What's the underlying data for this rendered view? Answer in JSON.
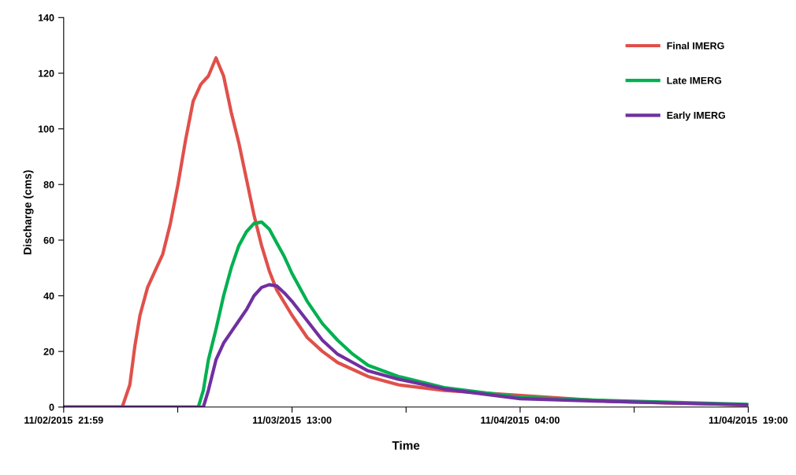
{
  "chart_data": {
    "type": "line",
    "xlabel": "Time",
    "ylabel": "Discharge (cms)",
    "xlim": [
      "2015-11-02T21:59",
      "2015-11-04T19:00"
    ],
    "xticks": [
      {
        "value": "2015-11-02T21:59",
        "label": "11/02/2015  21:59"
      },
      {
        "value": "2015-11-03T05:29",
        "label": null
      },
      {
        "value": "2015-11-03T13:00",
        "label": "11/03/2015  13:00"
      },
      {
        "value": "2015-11-03T20:30",
        "label": null
      },
      {
        "value": "2015-11-04T04:00",
        "label": "11/04/2015  04:00"
      },
      {
        "value": "2015-11-04T11:30",
        "label": null
      },
      {
        "value": "2015-11-04T19:00",
        "label": "11/04/2015  19:00"
      }
    ],
    "ylim": [
      0,
      140
    ],
    "yticks": [
      0,
      20,
      40,
      60,
      80,
      100,
      120,
      140
    ],
    "grid": false,
    "legend": "top right",
    "marker": "none",
    "line_style": "solid",
    "series": [
      {
        "name": "Final IMERG",
        "color": "#e0504a",
        "x": [
          "2015-11-02T21:59",
          "2015-11-03T01:50",
          "2015-11-03T02:20",
          "2015-11-03T02:40",
          "2015-11-03T03:00",
          "2015-11-03T03:30",
          "2015-11-03T04:00",
          "2015-11-03T04:30",
          "2015-11-03T05:00",
          "2015-11-03T05:30",
          "2015-11-03T06:00",
          "2015-11-03T06:30",
          "2015-11-03T07:00",
          "2015-11-03T07:30",
          "2015-11-03T08:00",
          "2015-11-03T08:30",
          "2015-11-03T09:00",
          "2015-11-03T09:30",
          "2015-11-03T10:00",
          "2015-11-03T10:30",
          "2015-11-03T11:00",
          "2015-11-03T11:30",
          "2015-11-03T12:00",
          "2015-11-03T13:00",
          "2015-11-03T14:00",
          "2015-11-03T15:00",
          "2015-11-03T16:00",
          "2015-11-03T18:00",
          "2015-11-03T20:00",
          "2015-11-03T23:00",
          "2015-11-04T10:00",
          "2015-11-04T19:00"
        ],
        "values": [
          0,
          0,
          8,
          22,
          33,
          43,
          49,
          55,
          66,
          80,
          96,
          110,
          116,
          119,
          125.5,
          119,
          106,
          95,
          82,
          69,
          58,
          49,
          42,
          33,
          25,
          20,
          16,
          11,
          8,
          6,
          2,
          0.8
        ]
      },
      {
        "name": "Late IMERG",
        "color": "#00b050",
        "x": [
          "2015-11-02T21:59",
          "2015-11-03T06:50",
          "2015-11-03T07:10",
          "2015-11-03T07:30",
          "2015-11-03T08:00",
          "2015-11-03T08:30",
          "2015-11-03T09:00",
          "2015-11-03T09:30",
          "2015-11-03T10:00",
          "2015-11-03T10:30",
          "2015-11-03T11:00",
          "2015-11-03T11:30",
          "2015-11-03T12:00",
          "2015-11-03T12:30",
          "2015-11-03T13:00",
          "2015-11-03T14:00",
          "2015-11-03T15:00",
          "2015-11-03T16:00",
          "2015-11-03T17:00",
          "2015-11-03T18:00",
          "2015-11-03T20:00",
          "2015-11-03T23:00",
          "2015-11-04T04:00",
          "2015-11-04T10:00",
          "2015-11-04T19:00"
        ],
        "values": [
          0,
          0,
          6,
          17,
          28,
          40,
          50,
          58,
          63,
          66,
          66.5,
          64,
          59,
          54,
          48,
          38,
          30,
          24,
          19,
          15,
          11,
          7,
          3.5,
          2.3,
          1
        ]
      },
      {
        "name": "Early IMERG",
        "color": "#7030a0",
        "x": [
          "2015-11-02T21:59",
          "2015-11-03T07:10",
          "2015-11-03T07:30",
          "2015-11-03T08:00",
          "2015-11-03T08:30",
          "2015-11-03T09:00",
          "2015-11-03T09:30",
          "2015-11-03T10:00",
          "2015-11-03T10:30",
          "2015-11-03T11:00",
          "2015-11-03T11:30",
          "2015-11-03T12:00",
          "2015-11-03T12:30",
          "2015-11-03T13:00",
          "2015-11-03T14:00",
          "2015-11-03T15:00",
          "2015-11-03T16:00",
          "2015-11-03T17:00",
          "2015-11-03T18:00",
          "2015-11-03T20:00",
          "2015-11-03T23:00",
          "2015-11-04T04:00",
          "2015-11-04T10:00",
          "2015-11-04T19:00"
        ],
        "values": [
          0,
          0,
          6,
          17,
          23,
          27,
          31,
          35,
          40,
          43,
          44,
          43.5,
          41,
          38,
          31,
          24,
          19,
          16,
          13,
          10,
          6.5,
          3,
          2,
          0.8
        ]
      }
    ]
  }
}
